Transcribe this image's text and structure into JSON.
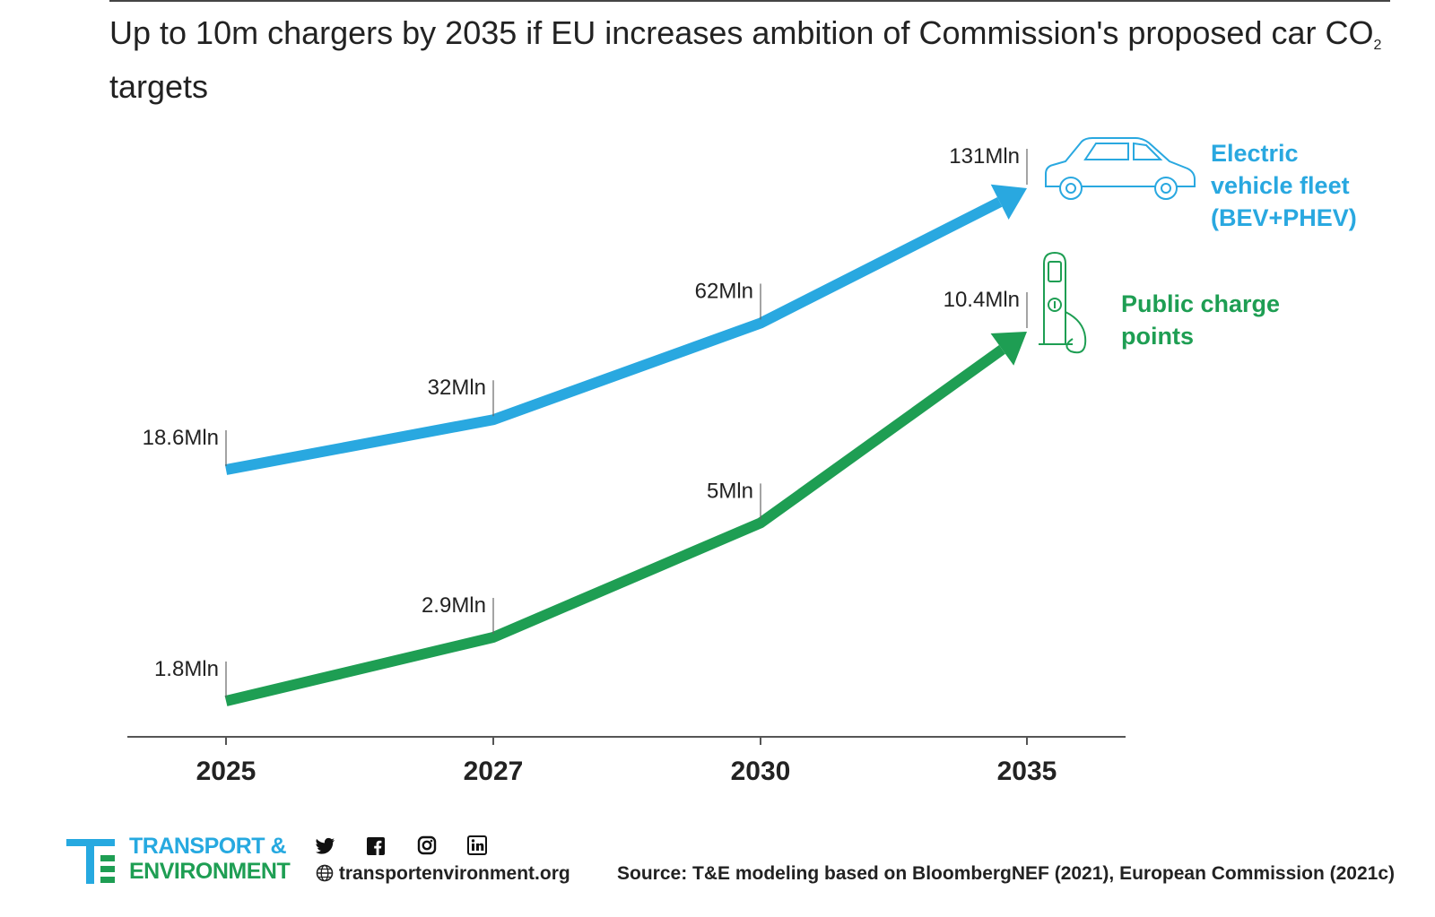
{
  "title": {
    "main": "Up to 10m chargers by 2035 if EU increases ambition of Commission's proposed car CO",
    "sub": "2",
    "tail": " targets"
  },
  "chart_data": {
    "type": "line",
    "x": [
      "2025",
      "2027",
      "2030",
      "2035"
    ],
    "series": [
      {
        "name": "Electric vehicle fleet (BEV+PHEV)",
        "name_lines": [
          "Electric",
          "vehicle fleet",
          "(BEV+PHEV)"
        ],
        "color": "#29a8e0",
        "values": [
          18.6,
          32,
          62,
          131
        ],
        "labels": [
          "18.6Mln",
          "32Mln",
          "62Mln",
          "131Mln"
        ],
        "icon": "car-icon"
      },
      {
        "name": "Public charge points",
        "name_lines": [
          "Public charge",
          "points"
        ],
        "color": "#1e9e53",
        "values": [
          1.8,
          2.9,
          5,
          10.4
        ],
        "labels": [
          "1.8Mln",
          "2.9Mln",
          "5Mln",
          "10.4Mln"
        ],
        "icon": "charging-station-icon"
      }
    ],
    "grid": false,
    "legend": "right, end of lines"
  },
  "footer": {
    "brand_line1": "TRANSPORT &",
    "brand_line2": "ENVIRONMENT",
    "website": "transportenvironment.org",
    "source": "Source: T&E modeling based on BloombergNEF (2021), European Commission (2021c)",
    "social_icons": [
      "twitter-icon",
      "facebook-icon",
      "instagram-icon",
      "linkedin-icon"
    ]
  }
}
